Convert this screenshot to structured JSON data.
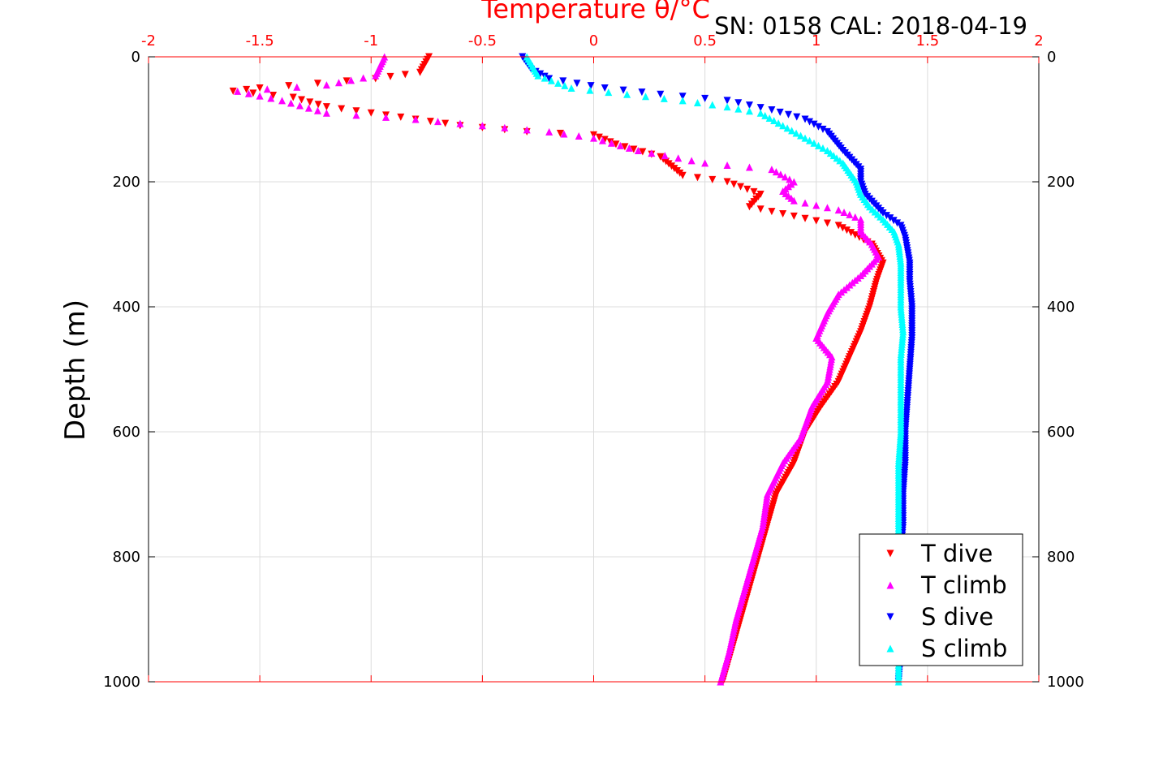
{
  "header": {
    "serial_cal": "SN: 0158  CAL: 2018-04-19"
  },
  "chart_data": {
    "type": "scatter",
    "title": "Temperature θ/°C",
    "xlabel": "Temperature θ/°C",
    "ylabel": "Depth (m)",
    "xlim": [
      -2,
      2
    ],
    "ylim": [
      0,
      1000
    ],
    "y_reversed": true,
    "x_axis_position": "top",
    "x_ticks": [
      -2,
      -1.5,
      -1,
      -0.5,
      0,
      0.5,
      1,
      1.5,
      2
    ],
    "x_tick_labels": [
      "-2",
      "-1.5",
      "-1",
      "-0.5",
      "0",
      "0.5",
      "1",
      "1.5",
      "2"
    ],
    "y_ticks": [
      0,
      200,
      400,
      600,
      800,
      1000
    ],
    "y_tick_labels": [
      "0",
      "200",
      "400",
      "600",
      "800",
      "1000"
    ],
    "grid": true,
    "legend_position": "bottom-right",
    "series": [
      {
        "name": "T dive",
        "color": "#ff0000",
        "marker": "triangle-down",
        "points": [
          [
            -0.74,
            0
          ],
          [
            -0.78,
            25
          ],
          [
            -0.98,
            35
          ],
          [
            -1.5,
            50
          ],
          [
            -1.62,
            55
          ],
          [
            -1.35,
            65
          ],
          [
            -1.2,
            80
          ],
          [
            -1.0,
            90
          ],
          [
            -0.8,
            100
          ],
          [
            -0.6,
            110
          ],
          [
            -0.3,
            120
          ],
          [
            0,
            125
          ],
          [
            0.1,
            140
          ],
          [
            0.3,
            160
          ],
          [
            0.35,
            175
          ],
          [
            0.4,
            190
          ],
          [
            0.6,
            200
          ],
          [
            0.75,
            220
          ],
          [
            0.7,
            240
          ],
          [
            0.9,
            255
          ],
          [
            1.1,
            270
          ],
          [
            1.25,
            300
          ],
          [
            1.3,
            330
          ],
          [
            1.27,
            360
          ],
          [
            1.24,
            400
          ],
          [
            1.2,
            440
          ],
          [
            1.15,
            480
          ],
          [
            1.1,
            520
          ],
          [
            1.02,
            560
          ],
          [
            0.95,
            600
          ],
          [
            0.9,
            650
          ],
          [
            0.82,
            700
          ],
          [
            0.78,
            750
          ],
          [
            0.74,
            800
          ],
          [
            0.7,
            850
          ],
          [
            0.66,
            900
          ],
          [
            0.62,
            950
          ],
          [
            0.58,
            1000
          ]
        ]
      },
      {
        "name": "T climb",
        "color": "#ff00ff",
        "marker": "triangle-up",
        "points": [
          [
            -0.94,
            0
          ],
          [
            -0.98,
            30
          ],
          [
            -1.2,
            45
          ],
          [
            -1.6,
            55
          ],
          [
            -1.4,
            70
          ],
          [
            -1.2,
            90
          ],
          [
            -0.8,
            100
          ],
          [
            -0.5,
            110
          ],
          [
            -0.2,
            120
          ],
          [
            0,
            130
          ],
          [
            0.2,
            150
          ],
          [
            0.5,
            170
          ],
          [
            0.8,
            180
          ],
          [
            0.9,
            200
          ],
          [
            0.85,
            215
          ],
          [
            0.9,
            230
          ],
          [
            1.1,
            245
          ],
          [
            1.2,
            260
          ],
          [
            1.2,
            280
          ],
          [
            1.25,
            300
          ],
          [
            1.28,
            320
          ],
          [
            1.2,
            350
          ],
          [
            1.1,
            380
          ],
          [
            1.05,
            410
          ],
          [
            1.0,
            450
          ],
          [
            1.07,
            480
          ],
          [
            1.05,
            520
          ],
          [
            0.98,
            560
          ],
          [
            0.93,
            610
          ],
          [
            0.85,
            650
          ],
          [
            0.78,
            700
          ],
          [
            0.76,
            750
          ],
          [
            0.72,
            800
          ],
          [
            0.68,
            850
          ],
          [
            0.64,
            900
          ],
          [
            0.61,
            950
          ],
          [
            0.57,
            1000
          ]
        ]
      },
      {
        "name": "S dive",
        "color": "#0000ff",
        "marker": "triangle-down",
        "points": [
          [
            -0.32,
            0
          ],
          [
            -0.28,
            20
          ],
          [
            -0.2,
            35
          ],
          [
            0.05,
            50
          ],
          [
            0.3,
            60
          ],
          [
            0.6,
            70
          ],
          [
            0.8,
            85
          ],
          [
            0.95,
            100
          ],
          [
            1.05,
            120
          ],
          [
            1.12,
            150
          ],
          [
            1.2,
            180
          ],
          [
            1.2,
            200
          ],
          [
            1.22,
            220
          ],
          [
            1.3,
            250
          ],
          [
            1.38,
            270
          ],
          [
            1.4,
            290
          ],
          [
            1.41,
            310
          ],
          [
            1.42,
            330
          ],
          [
            1.42,
            360
          ],
          [
            1.43,
            400
          ],
          [
            1.43,
            450
          ],
          [
            1.42,
            500
          ],
          [
            1.41,
            550
          ],
          [
            1.4,
            600
          ],
          [
            1.4,
            650
          ],
          [
            1.39,
            700
          ],
          [
            1.39,
            750
          ],
          [
            1.38,
            800
          ],
          [
            1.38,
            850
          ],
          [
            1.38,
            900
          ],
          [
            1.38,
            950
          ],
          [
            1.37,
            1000
          ]
        ]
      },
      {
        "name": "S climb",
        "color": "#00ffff",
        "marker": "triangle-up",
        "points": [
          [
            -0.3,
            0
          ],
          [
            -0.25,
            30
          ],
          [
            -0.1,
            50
          ],
          [
            0.15,
            60
          ],
          [
            0.4,
            70
          ],
          [
            0.6,
            80
          ],
          [
            0.75,
            90
          ],
          [
            0.85,
            110
          ],
          [
            0.95,
            130
          ],
          [
            1.05,
            150
          ],
          [
            1.12,
            170
          ],
          [
            1.18,
            200
          ],
          [
            1.2,
            220
          ],
          [
            1.24,
            240
          ],
          [
            1.3,
            260
          ],
          [
            1.35,
            280
          ],
          [
            1.37,
            300
          ],
          [
            1.38,
            330
          ],
          [
            1.38,
            360
          ],
          [
            1.38,
            400
          ],
          [
            1.39,
            440
          ],
          [
            1.38,
            480
          ],
          [
            1.38,
            520
          ],
          [
            1.38,
            560
          ],
          [
            1.38,
            600
          ],
          [
            1.37,
            650
          ],
          [
            1.37,
            700
          ],
          [
            1.37,
            750
          ],
          [
            1.37,
            800
          ],
          [
            1.37,
            850
          ],
          [
            1.37,
            900
          ],
          [
            1.37,
            950
          ],
          [
            1.37,
            1000
          ]
        ]
      }
    ]
  }
}
